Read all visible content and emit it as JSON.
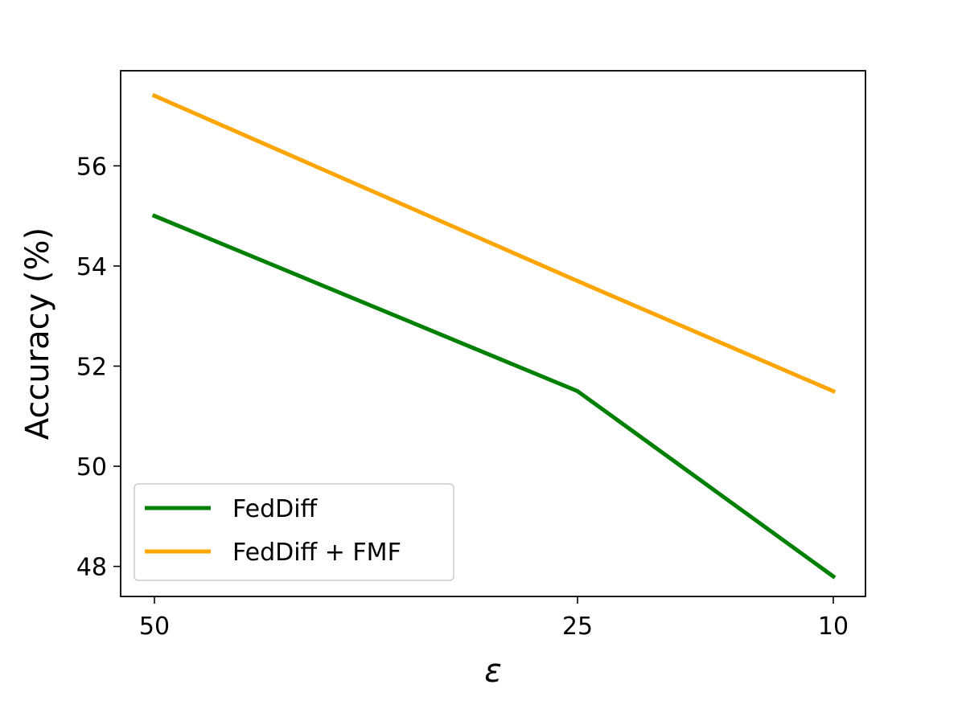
{
  "chart_data": {
    "type": "line",
    "title": "",
    "xlabel": "ε",
    "ylabel": "Accuracy (%)",
    "x": [
      "50",
      "25",
      "10"
    ],
    "ylim": [
      47.4,
      57.9
    ],
    "yticks": [
      48,
      50,
      52,
      54,
      56
    ],
    "grid": false,
    "legend_position": "lower-left",
    "series": [
      {
        "name": "FedDiff",
        "color": "#008000",
        "values": [
          55.0,
          51.5,
          47.8
        ]
      },
      {
        "name": "FedDiff + FMF",
        "color": "#FFA500",
        "values": [
          57.4,
          53.7,
          51.5
        ]
      }
    ]
  }
}
